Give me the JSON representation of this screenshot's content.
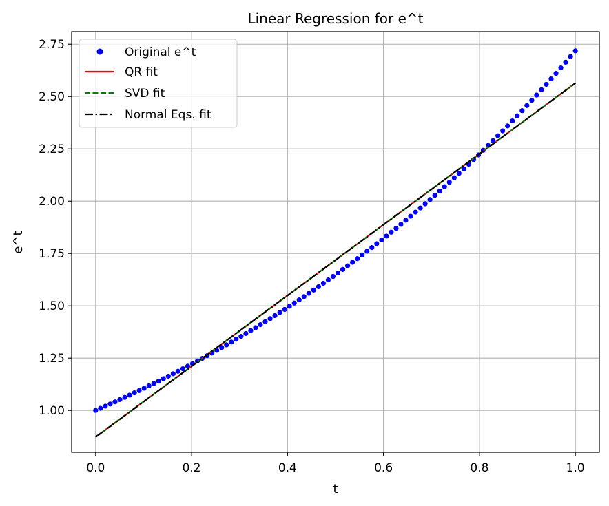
{
  "chart_data": {
    "type": "scatter",
    "title": "Linear Regression for e^t",
    "xlabel": "t",
    "ylabel": "e^t",
    "xlim": [
      -0.05,
      1.05
    ],
    "ylim": [
      0.8,
      2.81
    ],
    "xticks": [
      0.0,
      0.2,
      0.4,
      0.6,
      0.8,
      1.0
    ],
    "xtick_labels": [
      "0.0",
      "0.2",
      "0.4",
      "0.6",
      "0.8",
      "1.0"
    ],
    "yticks": [
      1.0,
      1.25,
      1.5,
      1.75,
      2.0,
      2.25,
      2.5,
      2.75
    ],
    "ytick_labels": [
      "1.00",
      "1.25",
      "1.50",
      "1.75",
      "2.00",
      "2.25",
      "2.50",
      "2.75"
    ],
    "grid": true,
    "legend_position": "upper-left",
    "scatter": {
      "name": "Original e^t",
      "color": "#0000ff",
      "x_start": 0.0,
      "x_end": 1.0,
      "count": 100,
      "function": "exp"
    },
    "series": [
      {
        "name": "QR fit",
        "color": "#ff0000",
        "style": "solid",
        "x": [
          0.0,
          1.0
        ],
        "y": [
          0.873,
          2.564
        ]
      },
      {
        "name": "SVD fit",
        "color": "#008000",
        "style": "dashed",
        "x": [
          0.0,
          1.0
        ],
        "y": [
          0.873,
          2.564
        ]
      },
      {
        "name": "Normal Eqs. fit",
        "color": "#000000",
        "style": "dashdot",
        "x": [
          0.0,
          1.0
        ],
        "y": [
          0.873,
          2.564
        ]
      }
    ]
  }
}
